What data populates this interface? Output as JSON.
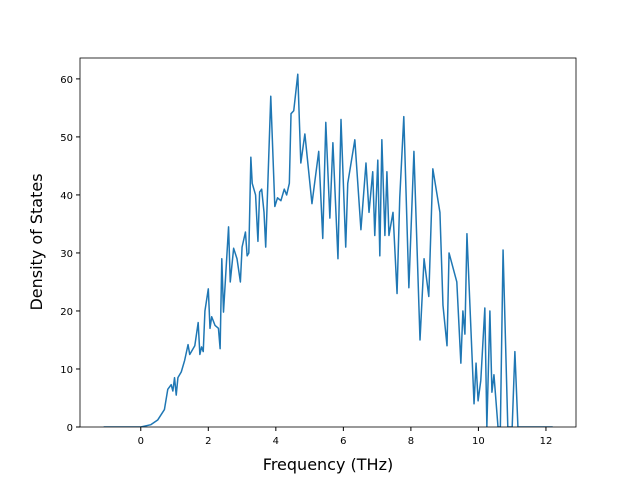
{
  "chart_data": {
    "type": "line",
    "x_label": "Frequency (THz)",
    "y_label": "Density of States",
    "x": [
      -1.1,
      0.0,
      0.3,
      0.5,
      0.7,
      0.8,
      0.9,
      0.95,
      1.0,
      1.05,
      1.1,
      1.2,
      1.3,
      1.4,
      1.45,
      1.6,
      1.7,
      1.75,
      1.8,
      1.85,
      1.9,
      2.0,
      2.05,
      2.1,
      2.2,
      2.3,
      2.35,
      2.4,
      2.45,
      2.6,
      2.65,
      2.75,
      2.85,
      2.95,
      3.0,
      3.1,
      3.15,
      3.2,
      3.26,
      3.3,
      3.4,
      3.47,
      3.52,
      3.58,
      3.65,
      3.7,
      3.85,
      3.97,
      4.05,
      4.15,
      4.25,
      4.32,
      4.4,
      4.45,
      4.53,
      4.65,
      4.74,
      4.86,
      5.07,
      5.27,
      5.39,
      5.48,
      5.6,
      5.69,
      5.84,
      5.93,
      6.07,
      6.13,
      6.34,
      6.52,
      6.67,
      6.76,
      6.87,
      6.93,
      7.02,
      7.08,
      7.14,
      7.23,
      7.29,
      7.35,
      7.47,
      7.59,
      7.67,
      7.79,
      7.94,
      8.09,
      8.27,
      8.39,
      8.53,
      8.65,
      8.86,
      8.95,
      9.07,
      9.13,
      9.36,
      9.48,
      9.54,
      9.6,
      9.66,
      9.87,
      9.93,
      9.99,
      10.07,
      10.19,
      10.25,
      10.34,
      10.4,
      10.46,
      10.58,
      10.65,
      10.73,
      10.87,
      11.0,
      11.08,
      11.17,
      12.2
    ],
    "series": [
      {
        "color": "#1f77b4",
        "values": [
          0,
          0,
          0.4,
          1.2,
          3,
          6.5,
          7.3,
          6.2,
          8.5,
          5.5,
          8.5,
          9.5,
          11.5,
          14.2,
          12.5,
          14,
          18,
          12.5,
          13.8,
          13,
          20,
          23.8,
          17,
          19,
          17.5,
          17,
          13.5,
          29,
          19.8,
          34.5,
          25,
          30.8,
          29,
          25,
          31,
          33.6,
          29.5,
          30,
          46.5,
          42,
          40,
          32,
          40.5,
          41,
          37,
          31,
          57,
          38,
          39.5,
          39,
          41,
          40,
          42,
          54,
          54.5,
          60.8,
          45.5,
          50.5,
          38.5,
          47.5,
          32.5,
          52.5,
          36,
          49,
          29,
          53,
          31,
          42,
          49.5,
          34,
          45.5,
          37,
          44,
          33,
          46,
          29.5,
          49.5,
          33,
          44,
          33,
          37,
          23,
          39.5,
          53.5,
          24,
          47.5,
          15,
          29,
          22.5,
          44.5,
          37,
          21,
          14,
          30,
          25,
          11,
          20,
          16,
          33.3,
          4,
          11,
          4.5,
          8,
          20.5,
          0,
          20,
          6,
          9,
          0,
          0,
          30.5,
          0,
          0,
          13,
          0,
          0
        ]
      }
    ],
    "xlim": [
      -1.8,
      12.89
    ],
    "ylim": [
      0,
      63.6
    ],
    "xticks": [
      0,
      2,
      4,
      6,
      8,
      10,
      12
    ],
    "yticks": [
      0,
      10,
      20,
      30,
      40,
      50,
      60
    ]
  }
}
